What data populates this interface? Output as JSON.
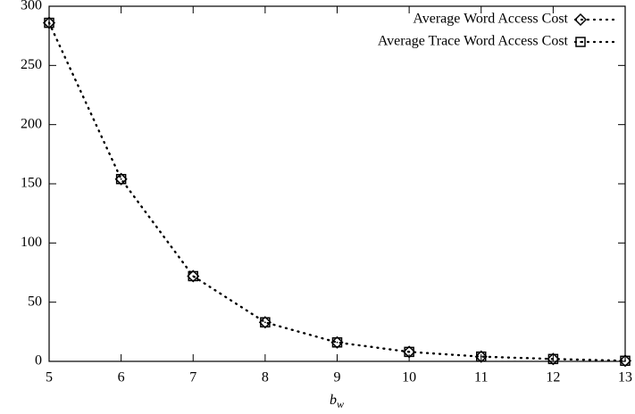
{
  "chart_data": {
    "type": "line",
    "x": [
      5,
      6,
      7,
      8,
      9,
      10,
      11,
      12,
      13
    ],
    "series": [
      {
        "name": "Average Word Access Cost",
        "color": "#000000",
        "marker": "diamond",
        "values": [
          286,
          154,
          72,
          33,
          16,
          8,
          4,
          2,
          0.5
        ]
      },
      {
        "name": "Average Trace Word Access Cost",
        "color": "#000000",
        "marker": "square",
        "values": [
          286,
          154,
          72,
          33,
          16,
          8,
          4,
          2,
          0.5
        ]
      }
    ],
    "xlabel": {
      "base": "b",
      "sub": "w"
    },
    "xlim": [
      5,
      13
    ],
    "xticks": [
      5,
      6,
      7,
      8,
      9,
      10,
      11,
      12,
      13
    ],
    "ylim": [
      0,
      300
    ],
    "yticks": [
      0,
      50,
      100,
      150,
      200,
      250,
      300
    ],
    "legend": "top-right",
    "grid": false
  }
}
